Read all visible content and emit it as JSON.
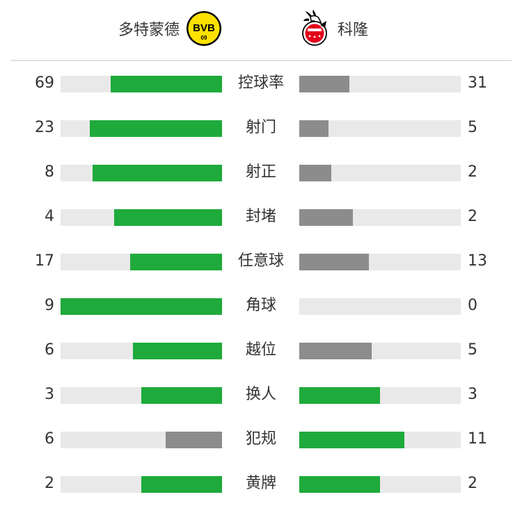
{
  "colors": {
    "lead": "#1faa3c",
    "trail": "#8c8c8c",
    "track": "#e9e9e9"
  },
  "home": {
    "name": "多特蒙德",
    "logo": "bvb-09-logo"
  },
  "away": {
    "name": "科隆",
    "logo": "koln-goat-crest-logo"
  },
  "stats": [
    {
      "label": "控球率",
      "home": 69,
      "away": 31,
      "home_fill": 0.69,
      "away_fill": 0.31,
      "home_lead": true,
      "away_lead": false
    },
    {
      "label": "射门",
      "home": 23,
      "away": 5,
      "home_fill": 0.82,
      "away_fill": 0.18,
      "home_lead": true,
      "away_lead": false
    },
    {
      "label": "射正",
      "home": 8,
      "away": 2,
      "home_fill": 0.8,
      "away_fill": 0.2,
      "home_lead": true,
      "away_lead": false
    },
    {
      "label": "封堵",
      "home": 4,
      "away": 2,
      "home_fill": 0.67,
      "away_fill": 0.33,
      "home_lead": true,
      "away_lead": false
    },
    {
      "label": "任意球",
      "home": 17,
      "away": 13,
      "home_fill": 0.57,
      "away_fill": 0.43,
      "home_lead": true,
      "away_lead": false
    },
    {
      "label": "角球",
      "home": 9,
      "away": 0,
      "home_fill": 1.0,
      "away_fill": 0.0,
      "home_lead": true,
      "away_lead": false
    },
    {
      "label": "越位",
      "home": 6,
      "away": 5,
      "home_fill": 0.55,
      "away_fill": 0.45,
      "home_lead": true,
      "away_lead": false
    },
    {
      "label": "换人",
      "home": 3,
      "away": 3,
      "home_fill": 0.5,
      "away_fill": 0.5,
      "home_lead": true,
      "away_lead": true
    },
    {
      "label": "犯规",
      "home": 6,
      "away": 11,
      "home_fill": 0.35,
      "away_fill": 0.65,
      "home_lead": false,
      "away_lead": true
    },
    {
      "label": "黄牌",
      "home": 2,
      "away": 2,
      "home_fill": 0.5,
      "away_fill": 0.5,
      "home_lead": true,
      "away_lead": true
    }
  ]
}
